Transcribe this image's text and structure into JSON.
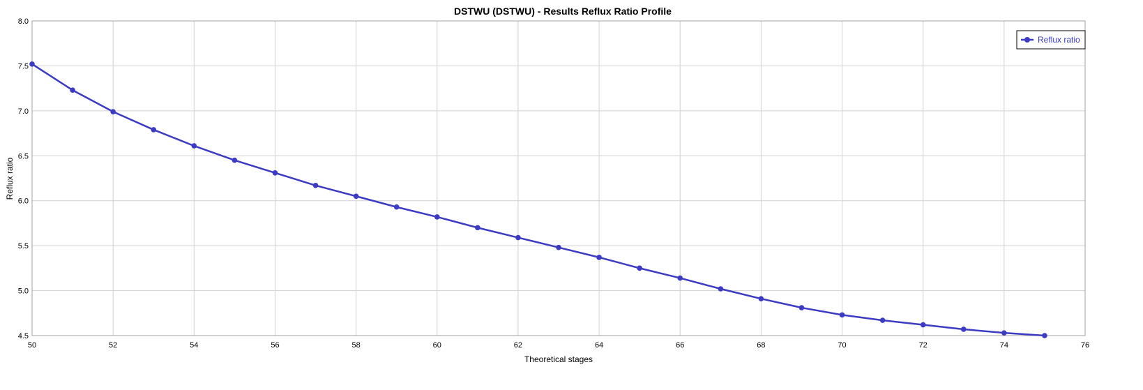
{
  "chart_data": {
    "type": "line",
    "title": "DSTWU (DSTWU) - Results Reflux Ratio Profile",
    "xlabel": "Theoretical stages",
    "ylabel": "Reflux ratio",
    "xlim": [
      50,
      76
    ],
    "ylim": [
      4.5,
      8.0
    ],
    "xticks": [
      "50",
      "52",
      "54",
      "56",
      "58",
      "60",
      "62",
      "64",
      "66",
      "68",
      "70",
      "72",
      "74",
      "76"
    ],
    "yticks": [
      "4.5",
      "5.0",
      "5.5",
      "6.0",
      "6.5",
      "7.0",
      "7.5",
      "8.0"
    ],
    "grid": true,
    "legend_position": "top-right",
    "series": [
      {
        "name": "Reflux ratio",
        "color": "#3b3bc4",
        "marker": "circle",
        "x": [
          50,
          51,
          52,
          53,
          54,
          55,
          56,
          57,
          58,
          59,
          60,
          61,
          62,
          63,
          64,
          65,
          66,
          67,
          68,
          69,
          70,
          71,
          72,
          73,
          74,
          75
        ],
        "y": [
          7.52,
          7.23,
          6.99,
          6.79,
          6.61,
          6.45,
          6.31,
          6.17,
          6.05,
          5.93,
          5.82,
          5.7,
          5.59,
          5.48,
          5.37,
          5.25,
          5.14,
          5.02,
          4.91,
          4.81,
          4.73,
          4.67,
          4.62,
          4.57,
          4.53,
          4.5
        ]
      }
    ]
  }
}
